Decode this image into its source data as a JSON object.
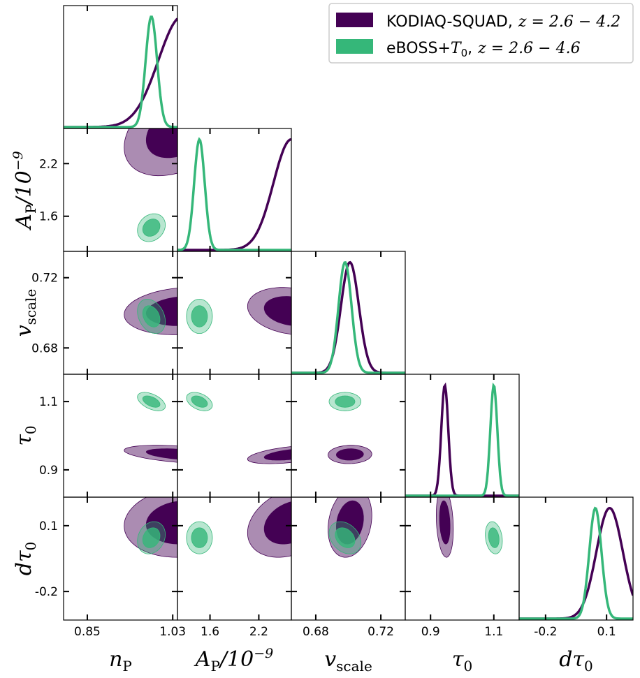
{
  "chart_data": {
    "type": "triangle-corner-plot",
    "parameters": [
      {
        "key": "nP",
        "label": "n",
        "sub": "P",
        "ticks": [
          0.85,
          1.03
        ],
        "tick_labels": [
          "0.85",
          "1.03"
        ],
        "range": [
          0.8,
          1.04
        ]
      },
      {
        "key": "AP",
        "label": "A",
        "sub": "P",
        "sup": "/10^-9",
        "ticks": [
          1.6,
          2.2
        ],
        "tick_labels": [
          "1.6",
          "2.2"
        ],
        "range": [
          1.2,
          2.6
        ]
      },
      {
        "key": "vscale",
        "label": "v",
        "sub": "scale",
        "ticks": [
          0.68,
          0.72
        ],
        "tick_labels": [
          "0.68",
          "0.72"
        ],
        "range": [
          0.665,
          0.735
        ]
      },
      {
        "key": "tau0",
        "label": "τ",
        "sub": "0",
        "ticks": [
          0.9,
          1.1
        ],
        "tick_labels": [
          "0.9",
          "1.1"
        ],
        "range": [
          0.82,
          1.18
        ]
      },
      {
        "key": "dtau0",
        "label": "dτ",
        "sub": "0",
        "ticks": [
          -0.2,
          0.1
        ],
        "tick_labels": [
          "-0.2",
          "0.1"
        ],
        "range": [
          -0.33,
          0.23
        ]
      }
    ],
    "series": [
      {
        "name": "KODIAQ-SQUAD",
        "redshift": "z = 2.6 − 4.2",
        "color": "#440154",
        "mean": {
          "nP": 1.05,
          "AP": 2.6,
          "vscale": 0.701,
          "tau0": 0.945,
          "dtau0": 0.115
        },
        "sigma": {
          "nP": 0.05,
          "AP": 0.22,
          "vscale": 0.0055,
          "tau0": 0.011,
          "dtau0": 0.065
        },
        "corr": {
          "nP|AP": 0.4,
          "nP|vscale": 0.15,
          "nP|tau0": -0.45,
          "nP|dtau0": 0.1,
          "AP|vscale": -0.2,
          "AP|tau0": 0.5,
          "AP|dtau0": 0.3,
          "vscale|tau0": 0.05,
          "vscale|dtau0": 0.2,
          "tau0|dtau0": -0.2
        }
      },
      {
        "name": "eBOSS+T0",
        "redshift": "z = 2.6 − 4.6",
        "color": "#35b779",
        "mean": {
          "nP": 0.985,
          "AP": 1.47,
          "vscale": 0.698,
          "tau0": 1.1,
          "dtau0": 0.045
        },
        "sigma": {
          "nP": 0.012,
          "AP": 0.065,
          "vscale": 0.004,
          "tau0": 0.011,
          "dtau0": 0.03
        },
        "corr": {
          "nP|AP": 0.2,
          "nP|vscale": -0.3,
          "nP|tau0": -0.5,
          "nP|dtau0": 0.2,
          "AP|vscale": 0.0,
          "AP|tau0": -0.4,
          "AP|dtau0": 0.0,
          "vscale|tau0": 0.0,
          "vscale|dtau0": -0.3,
          "tau0|dtau0": -0.2
        }
      }
    ],
    "contour_levels": [
      "68%",
      "95%"
    ]
  },
  "legend": {
    "entries": [
      {
        "name": "KODIAQ-SQUAD,",
        "math": "z = 2.6 − 4.2"
      },
      {
        "name": "eBOSS+",
        "name_math": "T",
        "name_sub": "0",
        "name_suffix": ",",
        "math": "z = 2.6 − 4.6"
      }
    ]
  },
  "axis_titles": {
    "x": [
      "nP",
      "AP/10-9",
      "vscale",
      "τ0",
      "dτ0"
    ],
    "y": [
      "AP/10-9",
      "vscale",
      "τ0",
      "dτ0"
    ]
  }
}
